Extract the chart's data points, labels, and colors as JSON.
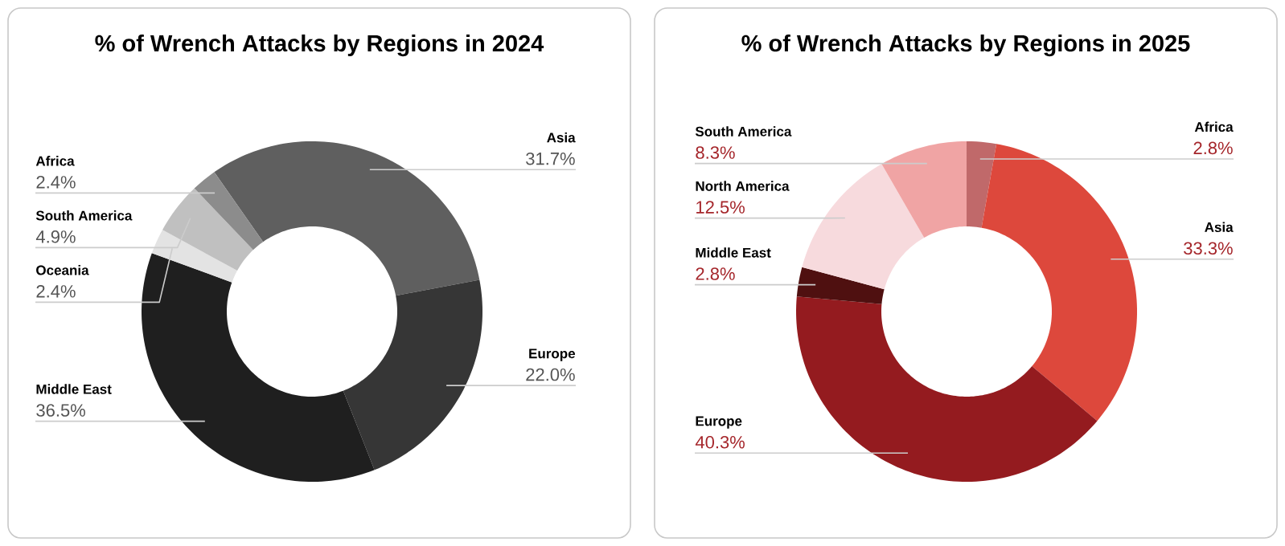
{
  "chart_data": [
    {
      "type": "donut",
      "title": "% of Wrench Attacks by Regions in 2024",
      "categories": [
        "Asia",
        "Europe",
        "Middle East",
        "Oceania",
        "South America",
        "Africa"
      ],
      "values": [
        31.7,
        22.0,
        36.5,
        2.4,
        4.9,
        2.4
      ],
      "colors": [
        "#5f5f5f",
        "#363636",
        "#1f1f1f",
        "#e3e3e3",
        "#c0c0c0",
        "#8c8c8c"
      ],
      "value_labels": [
        "31.7%",
        "22.0%",
        "36.5%",
        "2.4%",
        "4.9%",
        "2.4%"
      ]
    },
    {
      "type": "donut",
      "title": "% of Wrench Attacks by Regions in 2025",
      "categories": [
        "Africa",
        "Asia",
        "Europe",
        "Middle East",
        "North America",
        "South America"
      ],
      "values": [
        2.8,
        33.3,
        40.3,
        2.8,
        12.5,
        8.3
      ],
      "colors": [
        "#c0696a",
        "#dd483c",
        "#941b1f",
        "#4f1010",
        "#f7dadd",
        "#f0a4a4"
      ],
      "value_labels": [
        "2.8%",
        "33.3%",
        "40.3%",
        "2.8%",
        "12.5%",
        "8.3%"
      ]
    }
  ]
}
